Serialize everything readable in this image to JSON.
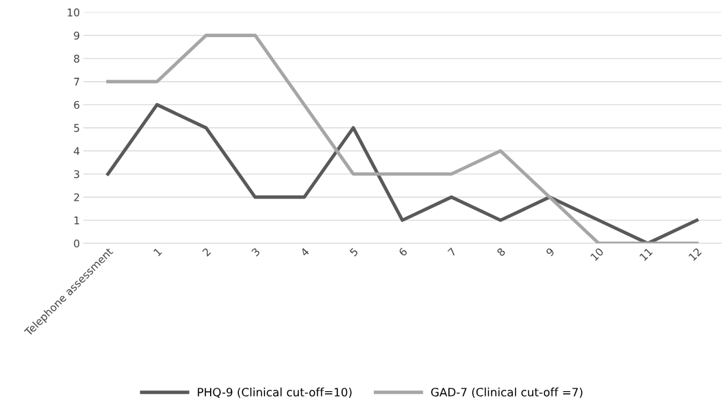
{
  "chart_data": {
    "type": "line",
    "categories": [
      "Telephone assessment",
      "1",
      "2",
      "3",
      "4",
      "5",
      "6",
      "7",
      "8",
      "9",
      "10",
      "11",
      "12"
    ],
    "series": [
      {
        "name": "PHQ-9 (Clinical cut-off=10)",
        "color": "#595959",
        "values": [
          3,
          6,
          5,
          2,
          2,
          5,
          1,
          2,
          1,
          2,
          1,
          0,
          1
        ]
      },
      {
        "name": "GAD-7 (Clinical cut-off =7)",
        "color": "#a6a6a6",
        "values": [
          7,
          7,
          9,
          9,
          6,
          3,
          3,
          3,
          4,
          2,
          0,
          0,
          0
        ]
      }
    ],
    "ylim": [
      0,
      10
    ],
    "yticks": [
      0,
      1,
      2,
      3,
      4,
      5,
      6,
      7,
      8,
      9,
      10
    ],
    "grid": "y",
    "legend": "bottom",
    "marker": "none",
    "line_style": "solid"
  }
}
